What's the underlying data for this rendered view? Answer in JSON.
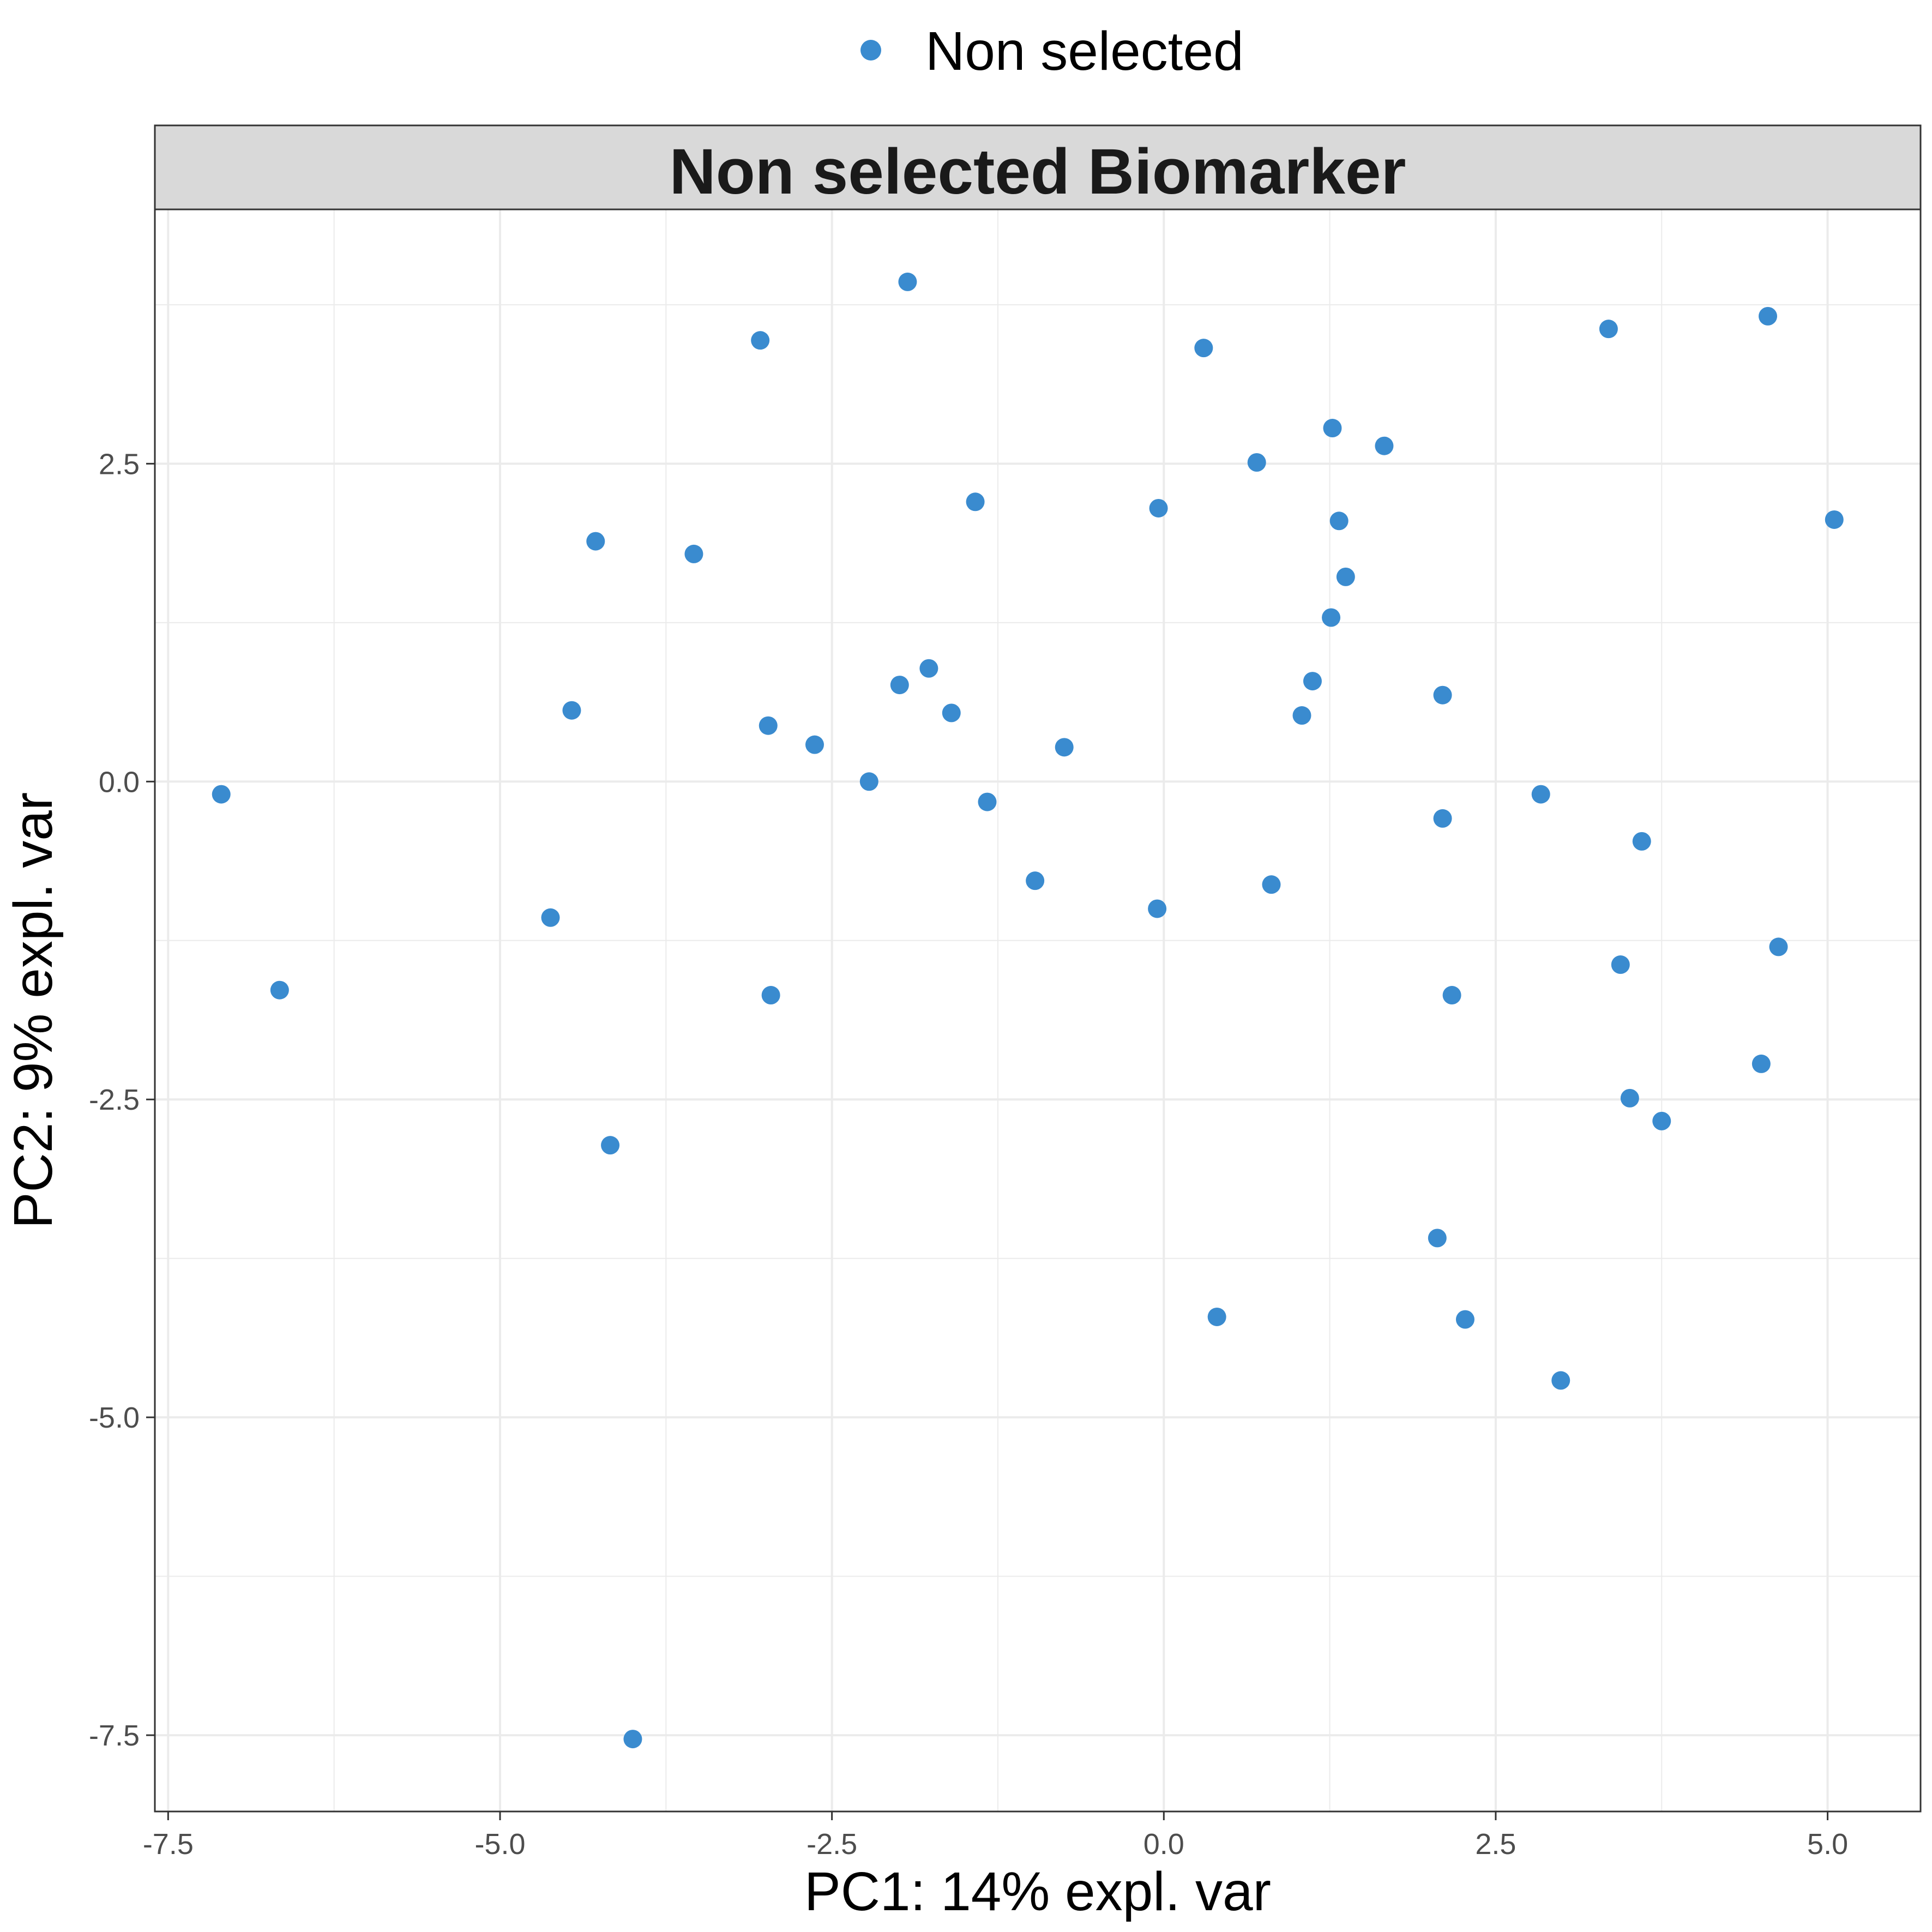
{
  "chart_data": {
    "type": "scatter",
    "title": "Non selected Biomarker",
    "xlabel": "PC1: 14% expl. var",
    "ylabel": "PC2: 9% expl. var",
    "xlim": [
      -7.6,
      5.7
    ],
    "ylim": [
      -8.1,
      4.5
    ],
    "xticks": [
      -7.5,
      -5.0,
      -2.5,
      0.0,
      2.5,
      5.0
    ],
    "xtick_labels": [
      "-7.5",
      "-5.0",
      "-2.5",
      "0.0",
      "2.5",
      "5.0"
    ],
    "yticks": [
      -7.5,
      -5.0,
      -2.5,
      0.0,
      2.5
    ],
    "ytick_labels": [
      "-7.5",
      "-5.0",
      "-2.5",
      "0.0",
      "2.5"
    ],
    "grid": true,
    "legend_position": "top",
    "colors": {
      "series": "#3a8bcf",
      "strip_bg": "#d9d9d9",
      "grid": "#ebebeb",
      "frame": "#333333"
    },
    "series": [
      {
        "name": "Non selected",
        "points": [
          {
            "x": -7.1,
            "y": -0.1
          },
          {
            "x": -6.66,
            "y": -1.64
          },
          {
            "x": -4.62,
            "y": -1.07
          },
          {
            "x": -4.46,
            "y": 0.56
          },
          {
            "x": -4.28,
            "y": 1.89
          },
          {
            "x": -4.17,
            "y": -2.86
          },
          {
            "x": -4.0,
            "y": -7.53
          },
          {
            "x": -3.54,
            "y": 1.79
          },
          {
            "x": -3.04,
            "y": 3.47
          },
          {
            "x": -2.98,
            "y": 0.44
          },
          {
            "x": -2.96,
            "y": -1.68
          },
          {
            "x": -2.63,
            "y": 0.29
          },
          {
            "x": -2.22,
            "y": 0.0
          },
          {
            "x": -1.99,
            "y": 0.76
          },
          {
            "x": -1.93,
            "y": 3.93
          },
          {
            "x": -1.77,
            "y": 0.89
          },
          {
            "x": -1.6,
            "y": 0.54
          },
          {
            "x": -1.42,
            "y": 2.2
          },
          {
            "x": -1.33,
            "y": -0.16
          },
          {
            "x": -0.97,
            "y": -0.78
          },
          {
            "x": -0.75,
            "y": 0.27
          },
          {
            "x": -0.05,
            "y": -1.0
          },
          {
            "x": -0.04,
            "y": 2.15
          },
          {
            "x": 0.3,
            "y": 3.41
          },
          {
            "x": 0.4,
            "y": -4.21
          },
          {
            "x": 0.7,
            "y": 2.51
          },
          {
            "x": 0.81,
            "y": -0.81
          },
          {
            "x": 1.04,
            "y": 0.52
          },
          {
            "x": 1.12,
            "y": 0.79
          },
          {
            "x": 1.26,
            "y": 1.29
          },
          {
            "x": 1.27,
            "y": 2.78
          },
          {
            "x": 1.32,
            "y": 2.05
          },
          {
            "x": 1.37,
            "y": 1.61
          },
          {
            "x": 1.66,
            "y": 2.64
          },
          {
            "x": 2.06,
            "y": -3.59
          },
          {
            "x": 2.1,
            "y": 0.68
          },
          {
            "x": 2.1,
            "y": -0.29
          },
          {
            "x": 2.17,
            "y": -1.68
          },
          {
            "x": 2.27,
            "y": -4.23
          },
          {
            "x": 2.84,
            "y": -0.1
          },
          {
            "x": 2.99,
            "y": -4.71
          },
          {
            "x": 3.35,
            "y": 3.56
          },
          {
            "x": 3.44,
            "y": -1.44
          },
          {
            "x": 3.51,
            "y": -2.49
          },
          {
            "x": 3.6,
            "y": -0.47
          },
          {
            "x": 3.75,
            "y": -2.67
          },
          {
            "x": 4.5,
            "y": -2.22
          },
          {
            "x": 4.55,
            "y": 3.66
          },
          {
            "x": 4.63,
            "y": -1.3
          },
          {
            "x": 5.05,
            "y": 2.06
          }
        ]
      }
    ]
  }
}
